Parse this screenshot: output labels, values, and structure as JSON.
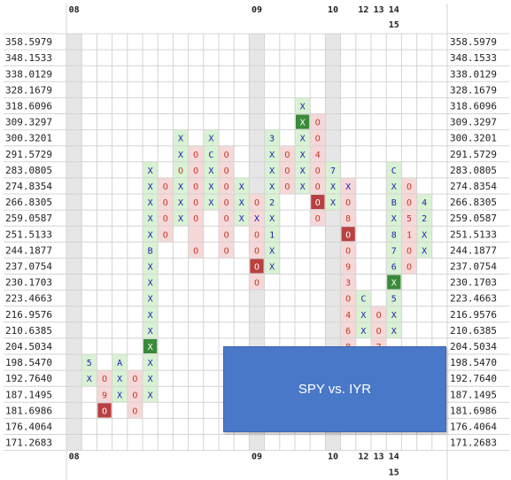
{
  "chart_data": {
    "type": "point-and-figure",
    "y_levels": [
      "358.5979",
      "348.1533",
      "338.0129",
      "328.1679",
      "318.6096",
      "309.3297",
      "300.3201",
      "291.5729",
      "283.0805",
      "274.8354",
      "266.8305",
      "259.0587",
      "251.5133",
      "244.1877",
      "237.0754",
      "230.1703",
      "223.4663",
      "216.9576",
      "210.6385",
      "204.5034",
      "198.5470",
      "192.7640",
      "187.1495",
      "181.6986",
      "176.4064",
      "171.2683"
    ],
    "x_labels_row1": [
      {
        "col": 3,
        "text": "08"
      },
      {
        "col": 15,
        "text": "09"
      },
      {
        "col": 20,
        "text": "10"
      },
      {
        "col": 22,
        "text": "12"
      },
      {
        "col": 23,
        "text": "13"
      },
      {
        "col": 24,
        "text": "14"
      }
    ],
    "x_labels_row2": [
      {
        "col": 24,
        "text": "15"
      }
    ],
    "columns": [
      {
        "col": 4,
        "type": "X",
        "cells": [
          {
            "row": 20,
            "t": "5"
          },
          {
            "row": 21,
            "t": "X"
          }
        ]
      },
      {
        "col": 5,
        "type": "O",
        "cells": [
          {
            "row": 21,
            "t": "O"
          },
          {
            "row": 22,
            "t": "9"
          },
          {
            "row": 23,
            "t": "O",
            "hl": "red"
          }
        ]
      },
      {
        "col": 6,
        "type": "X",
        "cells": [
          {
            "row": 20,
            "t": "A"
          },
          {
            "row": 21,
            "t": "X"
          },
          {
            "row": 22,
            "t": "X"
          }
        ]
      },
      {
        "col": 7,
        "type": "O",
        "cells": [
          {
            "row": 21,
            "t": "O"
          },
          {
            "row": 22,
            "t": "O"
          },
          {
            "row": 23,
            "t": "O"
          }
        ]
      },
      {
        "col": 8,
        "type": "X",
        "cells": [
          {
            "row": 8,
            "t": "X"
          },
          {
            "row": 9,
            "t": "X"
          },
          {
            "row": 10,
            "t": "X"
          },
          {
            "row": 11,
            "t": "X"
          },
          {
            "row": 12,
            "t": "X"
          },
          {
            "row": 13,
            "t": "B"
          },
          {
            "row": 14,
            "t": "X"
          },
          {
            "row": 15,
            "t": "X"
          },
          {
            "row": 16,
            "t": "X"
          },
          {
            "row": 17,
            "t": "X"
          },
          {
            "row": 18,
            "t": "X"
          },
          {
            "row": 19,
            "t": "X",
            "hl": "green"
          },
          {
            "row": 20,
            "t": "X"
          },
          {
            "row": 21,
            "t": "X"
          },
          {
            "row": 22,
            "t": "X"
          }
        ]
      },
      {
        "col": 9,
        "type": "O",
        "cells": [
          {
            "row": 9,
            "t": "O"
          },
          {
            "row": 10,
            "t": "O"
          },
          {
            "row": 11,
            "t": "O"
          },
          {
            "row": 12,
            "t": "O"
          }
        ]
      },
      {
        "col": 10,
        "type": "X",
        "cells": [
          {
            "row": 6,
            "t": "X"
          },
          {
            "row": 7,
            "t": "X"
          },
          {
            "row": 8,
            "t": "O"
          },
          {
            "row": 9,
            "t": "X"
          },
          {
            "row": 10,
            "t": "X"
          },
          {
            "row": 11,
            "t": "X"
          }
        ]
      },
      {
        "col": 11,
        "type": "O",
        "cells": [
          {
            "row": 7,
            "t": "O"
          },
          {
            "row": 8,
            "t": "O"
          },
          {
            "row": 9,
            "t": "O"
          },
          {
            "row": 10,
            "t": "O"
          },
          {
            "row": 11,
            "t": "O"
          },
          {
            "row": 13,
            "t": "O"
          }
        ]
      },
      {
        "col": 12,
        "type": "X",
        "cells": [
          {
            "row": 6,
            "t": "X"
          },
          {
            "row": 7,
            "t": "C"
          },
          {
            "row": 8,
            "t": "X"
          },
          {
            "row": 9,
            "t": "X"
          },
          {
            "row": 10,
            "t": "X"
          }
        ]
      },
      {
        "col": 13,
        "type": "O",
        "cells": [
          {
            "row": 7,
            "t": "O"
          },
          {
            "row": 8,
            "t": "O"
          },
          {
            "row": 9,
            "t": "O"
          },
          {
            "row": 10,
            "t": "O"
          },
          {
            "row": 11,
            "t": "O"
          },
          {
            "row": 12,
            "t": "O"
          },
          {
            "row": 13,
            "t": "O"
          }
        ]
      },
      {
        "col": 14,
        "type": "X",
        "cells": [
          {
            "row": 9,
            "t": "X"
          },
          {
            "row": 10,
            "t": "X"
          },
          {
            "row": 11,
            "t": "X"
          }
        ]
      },
      {
        "col": 15,
        "type": "O",
        "cells": [
          {
            "row": 10,
            "t": "O"
          },
          {
            "row": 11,
            "t": "X"
          },
          {
            "row": 12,
            "t": "O"
          },
          {
            "row": 13,
            "t": "O"
          },
          {
            "row": 14,
            "t": "O",
            "hl": "red"
          },
          {
            "row": 15,
            "t": "O"
          }
        ]
      },
      {
        "col": 16,
        "type": "X",
        "cells": [
          {
            "row": 6,
            "t": "3"
          },
          {
            "row": 7,
            "t": "X"
          },
          {
            "row": 8,
            "t": "X"
          },
          {
            "row": 9,
            "t": "X"
          },
          {
            "row": 10,
            "t": "2"
          },
          {
            "row": 11,
            "t": "X"
          },
          {
            "row": 12,
            "t": "1"
          },
          {
            "row": 13,
            "t": "X"
          },
          {
            "row": 14,
            "t": "X"
          }
        ]
      },
      {
        "col": 17,
        "type": "O",
        "cells": [
          {
            "row": 7,
            "t": "O"
          },
          {
            "row": 8,
            "t": "O"
          },
          {
            "row": 9,
            "t": "O"
          }
        ]
      },
      {
        "col": 18,
        "type": "X",
        "cells": [
          {
            "row": 4,
            "t": "X"
          },
          {
            "row": 5,
            "t": "X",
            "hl": "green"
          },
          {
            "row": 6,
            "t": "X"
          },
          {
            "row": 7,
            "t": "X"
          },
          {
            "row": 8,
            "t": "X"
          },
          {
            "row": 9,
            "t": "X"
          }
        ]
      },
      {
        "col": 19,
        "type": "O",
        "cells": [
          {
            "row": 5,
            "t": "O"
          },
          {
            "row": 6,
            "t": "O"
          },
          {
            "row": 7,
            "t": "4"
          },
          {
            "row": 8,
            "t": "O"
          },
          {
            "row": 9,
            "t": "O"
          },
          {
            "row": 10,
            "t": "O",
            "hl": "red"
          },
          {
            "row": 11,
            "t": "O"
          }
        ]
      },
      {
        "col": 20,
        "type": "X",
        "cells": [
          {
            "row": 8,
            "t": "7"
          },
          {
            "row": 9,
            "t": "X"
          },
          {
            "row": 10,
            "t": "X"
          }
        ]
      },
      {
        "col": 21,
        "type": "O",
        "cells": [
          {
            "row": 9,
            "t": "X"
          },
          {
            "row": 10,
            "t": "O"
          },
          {
            "row": 11,
            "t": "8"
          },
          {
            "row": 12,
            "t": "O",
            "hl": "red"
          },
          {
            "row": 13,
            "t": "O"
          },
          {
            "row": 14,
            "t": "9"
          },
          {
            "row": 15,
            "t": "3"
          },
          {
            "row": 16,
            "t": "O"
          },
          {
            "row": 17,
            "t": "4"
          },
          {
            "row": 18,
            "t": "6"
          },
          {
            "row": 19,
            "t": "8"
          }
        ]
      },
      {
        "col": 22,
        "type": "X",
        "cells": [
          {
            "row": 16,
            "t": "C"
          },
          {
            "row": 17,
            "t": "X"
          },
          {
            "row": 18,
            "t": "X"
          }
        ]
      },
      {
        "col": 23,
        "type": "O",
        "cells": [
          {
            "row": 17,
            "t": "O"
          },
          {
            "row": 18,
            "t": "O"
          },
          {
            "row": 19,
            "t": "7"
          }
        ]
      },
      {
        "col": 24,
        "type": "X",
        "cells": [
          {
            "row": 8,
            "t": "C"
          },
          {
            "row": 9,
            "t": "X"
          },
          {
            "row": 10,
            "t": "B"
          },
          {
            "row": 11,
            "t": "X"
          },
          {
            "row": 12,
            "t": "8"
          },
          {
            "row": 13,
            "t": "7"
          },
          {
            "row": 14,
            "t": "6"
          },
          {
            "row": 15,
            "t": "X",
            "hl": "green"
          },
          {
            "row": 16,
            "t": "5"
          },
          {
            "row": 17,
            "t": "X"
          },
          {
            "row": 18,
            "t": "X"
          }
        ]
      },
      {
        "col": 25,
        "type": "O",
        "cells": [
          {
            "row": 9,
            "t": "O"
          },
          {
            "row": 10,
            "t": "O"
          },
          {
            "row": 11,
            "t": "5"
          },
          {
            "row": 12,
            "t": "1"
          },
          {
            "row": 13,
            "t": "O"
          },
          {
            "row": 14,
            "t": "O"
          }
        ]
      },
      {
        "col": 26,
        "type": "X",
        "cells": [
          {
            "row": 10,
            "t": "4"
          },
          {
            "row": 11,
            "t": "2"
          },
          {
            "row": 12,
            "t": "X"
          },
          {
            "row": 13,
            "t": "X"
          }
        ]
      }
    ],
    "title": "SPY vs. IYR"
  },
  "colors": {
    "x_mark": "#1f1fb4",
    "o_mark": "#c0392b",
    "x_shade": "#d9f2d3",
    "o_shade": "#f6d8d8",
    "hl_green": "#3a8a3a",
    "hl_red": "#b94040",
    "grid": "#d4d4d4",
    "year_band": "#e6e6e6",
    "overlay": "#4a78c8"
  }
}
